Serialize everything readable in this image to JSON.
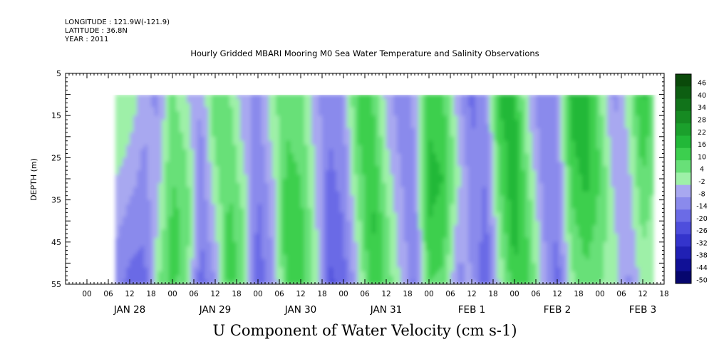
{
  "header": {
    "longitude": "LONGITUDE : 121.9W(-121.9)",
    "latitude": "LATITUDE : 36.8N",
    "year": "YEAR : 2011"
  },
  "chart_data": {
    "type": "heatmap",
    "title": "Hourly Gridded MBARI Mooring M0 Sea Water Temperature and Salinity Observations",
    "xlabel": "U Component of Water Velocity (cm s-1)",
    "ylabel": "DEPTH (m)",
    "y_ticks": [
      "5",
      "15",
      "25",
      "35",
      "45",
      "55"
    ],
    "y_range": [
      5,
      55
    ],
    "y_inverted": true,
    "x_hour_ticks": [
      "00",
      "06",
      "12",
      "18",
      "00",
      "06",
      "12",
      "18",
      "00",
      "06",
      "12",
      "18",
      "00",
      "06",
      "12",
      "18",
      "00",
      "06",
      "12",
      "18",
      "00",
      "06",
      "12",
      "18",
      "00",
      "06",
      "12",
      "18"
    ],
    "x_day_labels": [
      "JAN 28",
      "JAN 29",
      "JAN 30",
      "JAN 31",
      "FEB  1",
      "FEB  2",
      "FEB  3"
    ],
    "x_range_hours": [
      -6,
      162
    ],
    "data_range_hours": [
      8,
      159
    ],
    "data_depth_range": [
      10,
      55
    ],
    "colorbar": {
      "levels": [
        "46",
        "40",
        "34",
        "28",
        "22",
        "16",
        "10",
        "4",
        "-2",
        "-8",
        "-14",
        "-20",
        "-26",
        "-32",
        "-38",
        "-44",
        "-50"
      ],
      "colors": [
        "#0a4a0a",
        "#0d5e12",
        "#11731a",
        "#168a22",
        "#1ba02c",
        "#22b838",
        "#3ccf4e",
        "#68e078",
        "#9ef0a8",
        "#a8a8f0",
        "#8a8aec",
        "#6b6be6",
        "#4e4edc",
        "#3434cc",
        "#2020b4",
        "#101096",
        "#06066e"
      ]
    },
    "field": {
      "columns_hours": [
        8,
        12,
        16,
        20,
        24,
        28,
        32,
        36,
        40,
        44,
        48,
        52,
        56,
        60,
        64,
        68,
        72,
        76,
        80,
        84,
        88,
        92,
        96,
        100,
        104,
        108,
        112,
        116,
        120,
        124,
        128,
        132,
        136,
        140,
        144,
        148,
        152,
        156,
        159
      ],
      "depth_rows": [
        10,
        20,
        30,
        40,
        50,
        55
      ],
      "u_values": [
        [
          2,
          4,
          -6,
          -10,
          6,
          -2,
          -8,
          10,
          4,
          -6,
          -10,
          2,
          8,
          6,
          -6,
          -12,
          -8,
          12,
          10,
          -4,
          -12,
          -6,
          14,
          10,
          -6,
          -16,
          -10,
          18,
          16,
          -4,
          -14,
          -8,
          20,
          22,
          4,
          -10,
          2,
          18,
          8
        ],
        [
          4,
          -2,
          -8,
          -6,
          8,
          2,
          -10,
          6,
          8,
          -4,
          -12,
          0,
          10,
          8,
          -4,
          -14,
          -10,
          10,
          14,
          -2,
          -10,
          -8,
          16,
          14,
          -2,
          -14,
          -12,
          14,
          20,
          0,
          -12,
          -10,
          16,
          20,
          8,
          -8,
          -2,
          14,
          6
        ],
        [
          -2,
          -6,
          -10,
          -4,
          10,
          6,
          -12,
          2,
          10,
          0,
          -14,
          -4,
          12,
          10,
          -2,
          -16,
          -12,
          6,
          16,
          2,
          -8,
          -10,
          18,
          16,
          0,
          -12,
          -14,
          10,
          22,
          4,
          -10,
          -12,
          12,
          18,
          10,
          -4,
          -4,
          10,
          4
        ],
        [
          -6,
          -10,
          -12,
          -2,
          12,
          8,
          -14,
          -2,
          12,
          4,
          -16,
          -6,
          14,
          12,
          0,
          -18,
          -14,
          2,
          18,
          6,
          -6,
          -12,
          16,
          14,
          -4,
          -10,
          -16,
          6,
          20,
          8,
          -8,
          -14,
          8,
          14,
          8,
          -2,
          -6,
          6,
          2
        ],
        [
          -10,
          -14,
          -16,
          2,
          14,
          6,
          -16,
          -6,
          14,
          6,
          -18,
          -8,
          12,
          14,
          2,
          -20,
          -16,
          -2,
          16,
          8,
          -4,
          -14,
          12,
          10,
          -8,
          -8,
          -18,
          2,
          16,
          10,
          -6,
          -16,
          4,
          10,
          6,
          0,
          -8,
          2,
          0
        ],
        [
          -12,
          -16,
          -18,
          4,
          12,
          4,
          -18,
          -8,
          12,
          6,
          -20,
          -10,
          10,
          12,
          2,
          -22,
          -18,
          -4,
          14,
          8,
          -2,
          -16,
          10,
          8,
          -10,
          -6,
          -20,
          0,
          14,
          10,
          -4,
          -18,
          2,
          8,
          4,
          2,
          -10,
          0,
          -2
        ]
      ]
    }
  }
}
